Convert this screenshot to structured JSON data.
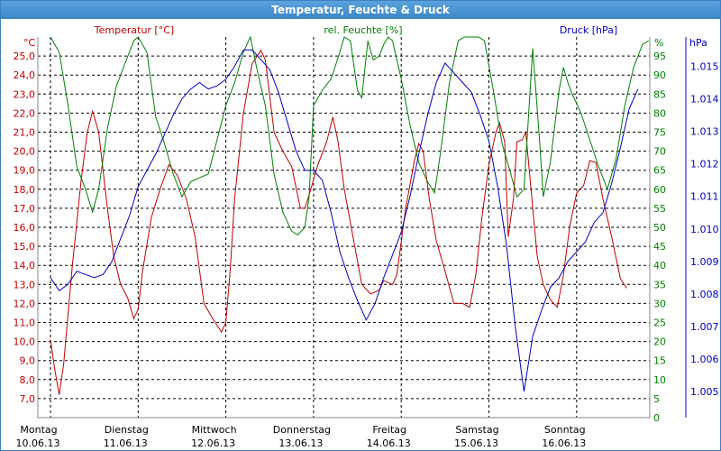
{
  "title": "Temperatur, Feuchte & Druck",
  "colors": {
    "temperature": "#c00000",
    "humidity": "#008000",
    "pressure": "#0000c0",
    "title_bar": "#3f8bcc",
    "grid": "#000000"
  },
  "chart_data": {
    "type": "line",
    "title": "Temperatur, Feuchte & Druck",
    "grid": true,
    "x": {
      "label": "",
      "range": [
        "10.06.13 00:00",
        "17.06.13 00:00"
      ],
      "ticks": [
        {
          "day": "Montag",
          "date": "10.06.13"
        },
        {
          "day": "Dienstag",
          "date": "11.06.13"
        },
        {
          "day": "Mittwoch",
          "date": "12.06.13"
        },
        {
          "day": "Donnerstag",
          "date": "13.06.13"
        },
        {
          "day": "Freitag",
          "date": "14.06.13"
        },
        {
          "day": "Samstag",
          "date": "15.06.13"
        },
        {
          "day": "Sonntag",
          "date": "16.06.13"
        }
      ]
    },
    "axes": {
      "temperature": {
        "unit": "°C",
        "position": "left",
        "range": [
          6.0,
          26.0
        ],
        "ticks": [
          "7,0",
          "8,0",
          "9,0",
          "10,0",
          "11,0",
          "12,0",
          "13,0",
          "14,0",
          "15,0",
          "16,0",
          "17,0",
          "18,0",
          "19,0",
          "20,0",
          "21,0",
          "22,0",
          "23,0",
          "24,0",
          "25,0"
        ]
      },
      "humidity": {
        "unit": "%",
        "position": "right",
        "range": [
          0,
          100
        ],
        "ticks": [
          "0",
          "5",
          "10",
          "15",
          "20",
          "25",
          "30",
          "35",
          "40",
          "45",
          "50",
          "55",
          "60",
          "65",
          "70",
          "75",
          "80",
          "85",
          "90",
          "95"
        ]
      },
      "pressure": {
        "unit": "hPa",
        "position": "far-right",
        "range": [
          1.0042,
          1.0159
        ],
        "ticks": [
          "1.005",
          "1.006",
          "1.007",
          "1.008",
          "1.009",
          "1.010",
          "1.011",
          "1.012",
          "1.013",
          "1.014",
          "1.015"
        ]
      }
    },
    "series": [
      {
        "name": "Temperatur [°C]",
        "axis": "temperature",
        "points": [
          [
            0.0,
            10.1
          ],
          [
            0.05,
            8.5
          ],
          [
            0.1,
            7.2
          ],
          [
            0.15,
            8.8
          ],
          [
            0.25,
            14.0
          ],
          [
            0.35,
            18.5
          ],
          [
            0.42,
            21.0
          ],
          [
            0.48,
            22.1
          ],
          [
            0.55,
            21.0
          ],
          [
            0.65,
            17.0
          ],
          [
            0.72,
            14.5
          ],
          [
            0.8,
            13.0
          ],
          [
            0.88,
            12.3
          ],
          [
            0.95,
            11.2
          ],
          [
            1.0,
            11.7
          ],
          [
            1.05,
            13.7
          ],
          [
            1.15,
            16.5
          ],
          [
            1.25,
            18.0
          ],
          [
            1.35,
            19.3
          ],
          [
            1.45,
            18.7
          ],
          [
            1.55,
            17.5
          ],
          [
            1.65,
            15.5
          ],
          [
            1.75,
            12.0
          ],
          [
            1.85,
            11.2
          ],
          [
            1.95,
            10.5
          ],
          [
            2.0,
            11.0
          ],
          [
            2.05,
            13.8
          ],
          [
            2.1,
            17.5
          ],
          [
            2.2,
            22.0
          ],
          [
            2.3,
            24.6
          ],
          [
            2.4,
            25.3
          ],
          [
            2.45,
            24.8
          ],
          [
            2.55,
            21.0
          ],
          [
            2.65,
            20.0
          ],
          [
            2.75,
            19.2
          ],
          [
            2.85,
            17.0
          ],
          [
            2.9,
            17.0
          ],
          [
            2.95,
            17.7
          ],
          [
            3.05,
            19.3
          ],
          [
            3.15,
            20.5
          ],
          [
            3.22,
            21.8
          ],
          [
            3.28,
            20.5
          ],
          [
            3.35,
            18.0
          ],
          [
            3.45,
            15.5
          ],
          [
            3.55,
            13.0
          ],
          [
            3.65,
            12.5
          ],
          [
            3.75,
            12.7
          ],
          [
            3.8,
            13.2
          ],
          [
            3.9,
            13.0
          ],
          [
            3.95,
            13.5
          ],
          [
            4.05,
            17.0
          ],
          [
            4.15,
            19.5
          ],
          [
            4.2,
            20.4
          ],
          [
            4.25,
            20.0
          ],
          [
            4.32,
            17.5
          ],
          [
            4.4,
            15.3
          ],
          [
            4.5,
            13.7
          ],
          [
            4.6,
            12.0
          ],
          [
            4.7,
            12.0
          ],
          [
            4.78,
            11.8
          ],
          [
            4.85,
            13.5
          ],
          [
            4.92,
            16.5
          ],
          [
            5.0,
            19.3
          ],
          [
            5.08,
            21.0
          ],
          [
            5.12,
            21.5
          ],
          [
            5.18,
            20.5
          ],
          [
            5.22,
            15.5
          ],
          [
            5.28,
            17.5
          ],
          [
            5.32,
            20.5
          ],
          [
            5.38,
            20.6
          ],
          [
            5.42,
            21.0
          ],
          [
            5.48,
            18.0
          ],
          [
            5.55,
            14.5
          ],
          [
            5.62,
            13.0
          ],
          [
            5.7,
            12.2
          ],
          [
            5.78,
            11.8
          ],
          [
            5.85,
            13.5
          ],
          [
            5.92,
            16.0
          ],
          [
            6.0,
            17.8
          ],
          [
            6.08,
            18.2
          ],
          [
            6.15,
            19.5
          ],
          [
            6.22,
            19.4
          ],
          [
            6.3,
            17.5
          ],
          [
            6.4,
            15.5
          ],
          [
            6.5,
            13.3
          ],
          [
            6.57,
            12.8
          ]
        ]
      },
      {
        "name": "rel. Feuchte [%]",
        "axis": "humidity",
        "points": [
          [
            0.0,
            100
          ],
          [
            0.1,
            96
          ],
          [
            0.2,
            82
          ],
          [
            0.3,
            66
          ],
          [
            0.4,
            60
          ],
          [
            0.48,
            54
          ],
          [
            0.55,
            60
          ],
          [
            0.65,
            76
          ],
          [
            0.75,
            87
          ],
          [
            0.85,
            93
          ],
          [
            0.95,
            99
          ],
          [
            1.0,
            100
          ],
          [
            1.1,
            96
          ],
          [
            1.2,
            79
          ],
          [
            1.3,
            72
          ],
          [
            1.4,
            64
          ],
          [
            1.5,
            58
          ],
          [
            1.6,
            62
          ],
          [
            1.7,
            63
          ],
          [
            1.8,
            64
          ],
          [
            1.9,
            73
          ],
          [
            2.0,
            82
          ],
          [
            2.1,
            88
          ],
          [
            2.2,
            96
          ],
          [
            2.28,
            100
          ],
          [
            2.35,
            92
          ],
          [
            2.45,
            82
          ],
          [
            2.55,
            64
          ],
          [
            2.65,
            54
          ],
          [
            2.75,
            49
          ],
          [
            2.82,
            48
          ],
          [
            2.9,
            50
          ],
          [
            2.95,
            58
          ],
          [
            3.0,
            82
          ],
          [
            3.1,
            86
          ],
          [
            3.2,
            89
          ],
          [
            3.3,
            96
          ],
          [
            3.35,
            100
          ],
          [
            3.42,
            99
          ],
          [
            3.5,
            86
          ],
          [
            3.55,
            84
          ],
          [
            3.62,
            99
          ],
          [
            3.68,
            94
          ],
          [
            3.75,
            95
          ],
          [
            3.8,
            98
          ],
          [
            3.85,
            100
          ],
          [
            3.9,
            99
          ],
          [
            4.0,
            89
          ],
          [
            4.1,
            77
          ],
          [
            4.2,
            67
          ],
          [
            4.3,
            62
          ],
          [
            4.38,
            59
          ],
          [
            4.45,
            70
          ],
          [
            4.55,
            88
          ],
          [
            4.65,
            99
          ],
          [
            4.72,
            100
          ],
          [
            4.8,
            100
          ],
          [
            4.88,
            100
          ],
          [
            4.95,
            99
          ],
          [
            5.05,
            86
          ],
          [
            5.15,
            72
          ],
          [
            5.25,
            64
          ],
          [
            5.32,
            58
          ],
          [
            5.4,
            60
          ],
          [
            5.5,
            97
          ],
          [
            5.58,
            72
          ],
          [
            5.62,
            58
          ],
          [
            5.7,
            67
          ],
          [
            5.8,
            86
          ],
          [
            5.85,
            92
          ],
          [
            5.9,
            88
          ],
          [
            5.95,
            85
          ],
          [
            6.05,
            80
          ],
          [
            6.15,
            73
          ],
          [
            6.25,
            66
          ],
          [
            6.35,
            60
          ],
          [
            6.45,
            68
          ],
          [
            6.55,
            82
          ],
          [
            6.65,
            92
          ],
          [
            6.75,
            98
          ],
          [
            6.82,
            99
          ]
        ]
      },
      {
        "name": "Druck [hPa]",
        "axis": "pressure",
        "points": [
          [
            0.0,
            1.0085
          ],
          [
            0.1,
            1.0081
          ],
          [
            0.2,
            1.0083
          ],
          [
            0.3,
            1.0087
          ],
          [
            0.4,
            1.0086
          ],
          [
            0.5,
            1.0085
          ],
          [
            0.6,
            1.0086
          ],
          [
            0.7,
            1.009
          ],
          [
            0.8,
            1.0097
          ],
          [
            0.9,
            1.0104
          ],
          [
            1.0,
            1.0113
          ],
          [
            1.1,
            1.0118
          ],
          [
            1.2,
            1.0123
          ],
          [
            1.3,
            1.0129
          ],
          [
            1.4,
            1.0135
          ],
          [
            1.5,
            1.014
          ],
          [
            1.6,
            1.0143
          ],
          [
            1.7,
            1.0145
          ],
          [
            1.8,
            1.0143
          ],
          [
            1.9,
            1.0144
          ],
          [
            2.0,
            1.0146
          ],
          [
            2.1,
            1.015
          ],
          [
            2.2,
            1.0155
          ],
          [
            2.3,
            1.0155
          ],
          [
            2.4,
            1.0152
          ],
          [
            2.5,
            1.0149
          ],
          [
            2.6,
            1.0142
          ],
          [
            2.7,
            1.0133
          ],
          [
            2.8,
            1.0124
          ],
          [
            2.9,
            1.0118
          ],
          [
            3.0,
            1.0118
          ],
          [
            3.1,
            1.0115
          ],
          [
            3.2,
            1.0105
          ],
          [
            3.3,
            1.0093
          ],
          [
            3.4,
            1.0085
          ],
          [
            3.5,
            1.0078
          ],
          [
            3.6,
            1.0072
          ],
          [
            3.7,
            1.0077
          ],
          [
            3.8,
            1.0085
          ],
          [
            3.9,
            1.0092
          ],
          [
            4.0,
            1.0099
          ],
          [
            4.1,
            1.011
          ],
          [
            4.2,
            1.0123
          ],
          [
            4.3,
            1.0135
          ],
          [
            4.4,
            1.0145
          ],
          [
            4.5,
            1.0151
          ],
          [
            4.6,
            1.0148
          ],
          [
            4.7,
            1.0145
          ],
          [
            4.8,
            1.0142
          ],
          [
            4.9,
            1.0135
          ],
          [
            5.0,
            1.0127
          ],
          [
            5.1,
            1.0113
          ],
          [
            5.2,
            1.0095
          ],
          [
            5.3,
            1.007
          ],
          [
            5.4,
            1.005
          ],
          [
            5.5,
            1.0067
          ],
          [
            5.6,
            1.0075
          ],
          [
            5.7,
            1.0082
          ],
          [
            5.8,
            1.0085
          ],
          [
            5.9,
            1.009
          ],
          [
            6.0,
            1.0093
          ],
          [
            6.1,
            1.0096
          ],
          [
            6.2,
            1.0102
          ],
          [
            6.3,
            1.0105
          ],
          [
            6.4,
            1.0114
          ],
          [
            6.5,
            1.0125
          ],
          [
            6.6,
            1.0137
          ],
          [
            6.7,
            1.0143
          ]
        ]
      }
    ]
  }
}
